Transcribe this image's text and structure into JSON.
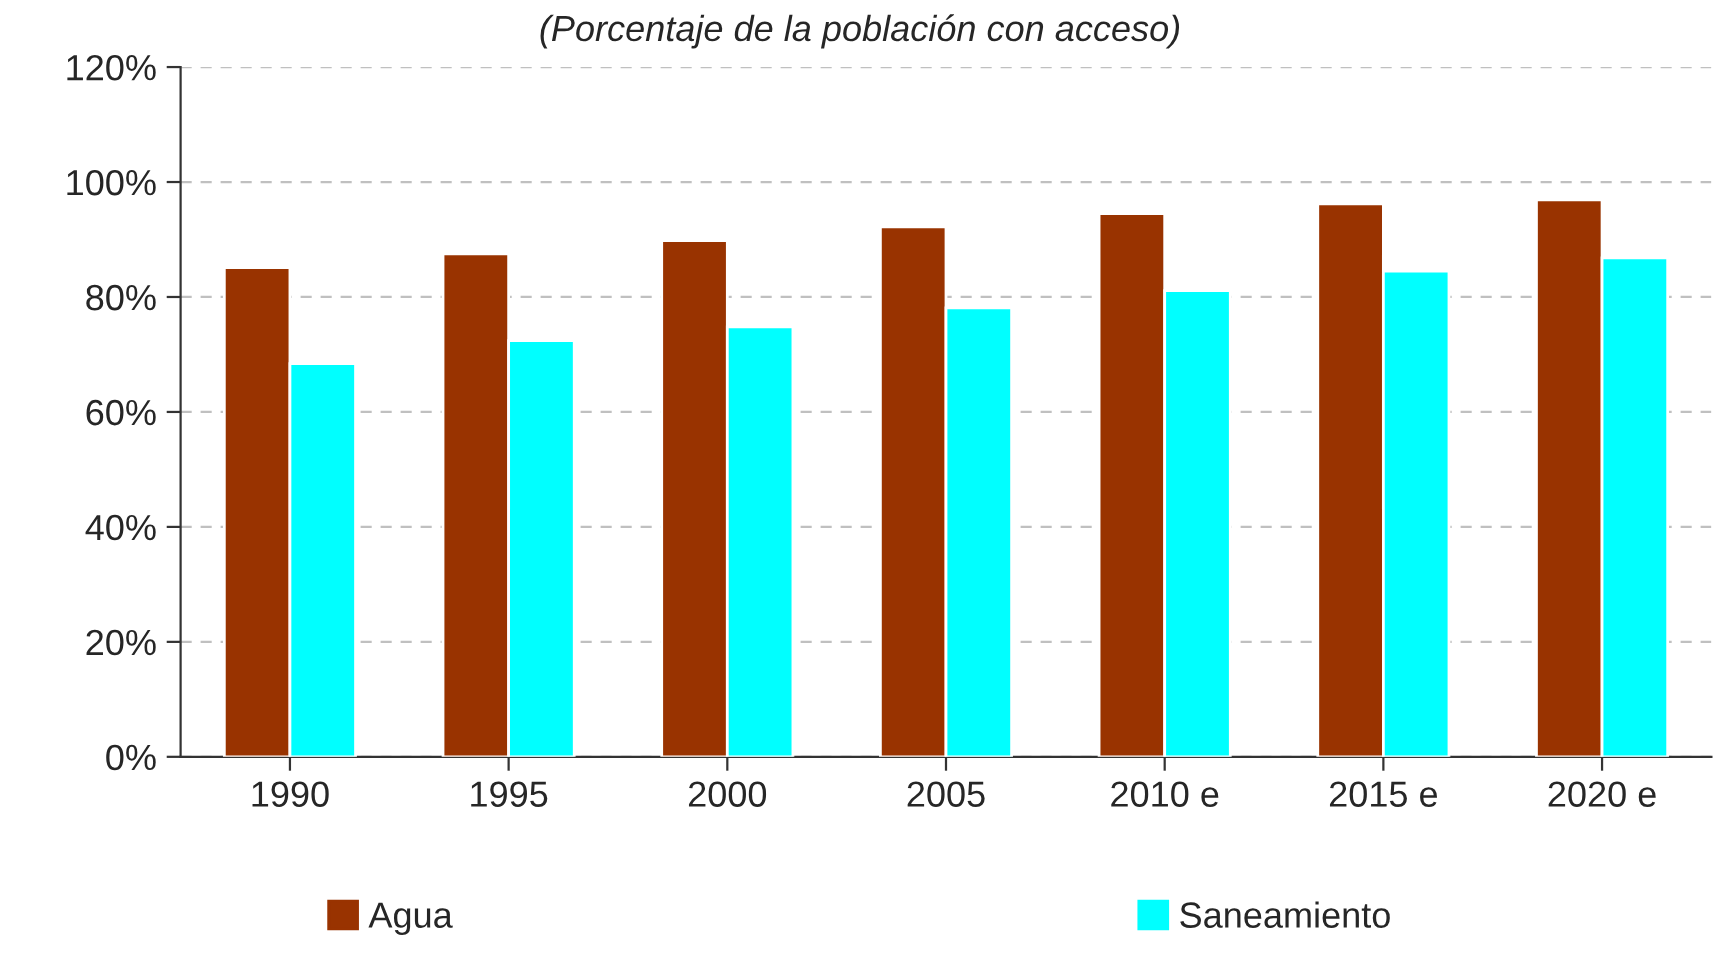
{
  "chart_data": {
    "type": "bar",
    "title": "(Porcentaje de la población con acceso)",
    "categories": [
      "1990",
      "1995",
      "2000",
      "2005",
      "2010 e",
      "2015 e",
      "2020 e"
    ],
    "series": [
      {
        "name": "Agua",
        "color": "#993300",
        "values": [
          85.1,
          87.5,
          89.8,
          92.2,
          94.5,
          96.2,
          96.9
        ]
      },
      {
        "name": "Saneamiento",
        "color": "#00ffff",
        "values": [
          68.4,
          72.4,
          74.8,
          78.1,
          81.1,
          84.5,
          86.8
        ]
      }
    ],
    "ylim": [
      0,
      120
    ],
    "yticks": [
      {
        "value": 0,
        "label": "0%"
      },
      {
        "value": 20,
        "label": "20%"
      },
      {
        "value": 40,
        "label": "40%"
      },
      {
        "value": 60,
        "label": "60%"
      },
      {
        "value": 80,
        "label": "80%"
      },
      {
        "value": 100,
        "label": "100%"
      },
      {
        "value": 120,
        "label": "120%"
      }
    ],
    "grid": "y",
    "legend": "bottom"
  }
}
